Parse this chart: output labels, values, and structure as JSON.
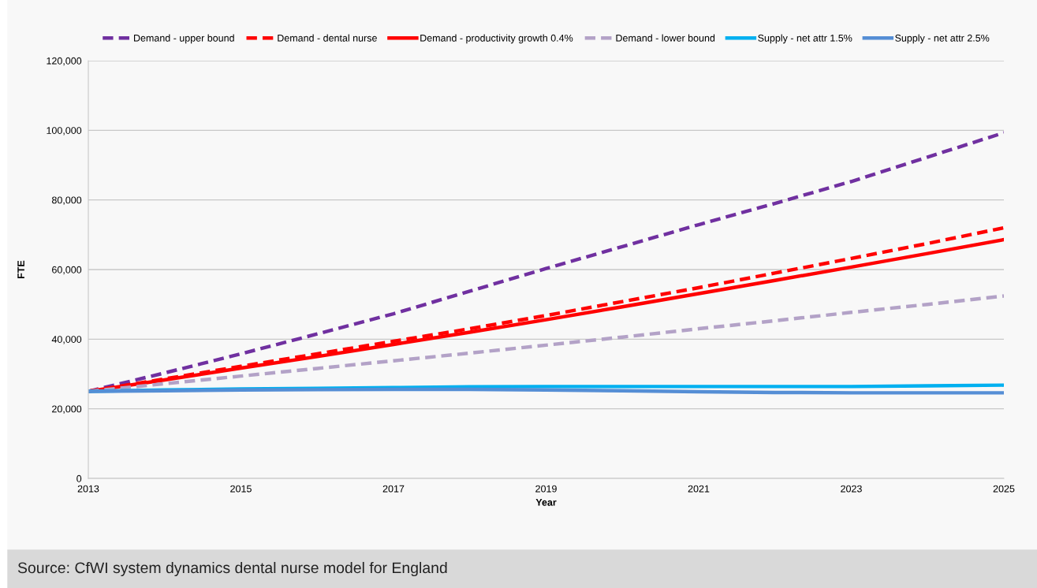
{
  "chart_data": {
    "type": "line",
    "xlabel": "Year",
    "ylabel": "FTE",
    "x": [
      2013,
      2014,
      2015,
      2016,
      2017,
      2018,
      2019,
      2020,
      2021,
      2022,
      2023,
      2024,
      2025
    ],
    "series": [
      {
        "name": "Demand - upper bound",
        "color": "#7030a0",
        "line_style": "dashed",
        "values": [
          25000,
          30300,
          35800,
          41500,
          47300,
          53800,
          60300,
          66600,
          72900,
          79000,
          85300,
          92300,
          99300
        ]
      },
      {
        "name": "Demand - dental nurse",
        "color": "#ff0000",
        "line_style": "dashed",
        "values": [
          25000,
          28600,
          32200,
          35800,
          39400,
          43000,
          46800,
          50800,
          54800,
          59000,
          63200,
          67500,
          72000
        ]
      },
      {
        "name": "Demand - productivity growth 0.4%",
        "color": "#ff0000",
        "line_style": "solid",
        "values": [
          25000,
          28300,
          31700,
          35000,
          38500,
          42000,
          45600,
          49300,
          53100,
          56900,
          60700,
          64600,
          68600
        ]
      },
      {
        "name": "Demand - lower bound",
        "color": "#b3a2c7",
        "line_style": "dashed",
        "values": [
          25000,
          27200,
          29400,
          31600,
          33800,
          36000,
          38300,
          40600,
          43000,
          45300,
          47700,
          50000,
          52400
        ]
      },
      {
        "name": "Supply - net attr 1.5%",
        "color": "#00b0f0",
        "line_style": "solid",
        "values": [
          25000,
          25400,
          25700,
          25900,
          26100,
          26300,
          26400,
          26400,
          26400,
          26400,
          26400,
          26600,
          26800
        ]
      },
      {
        "name": "Supply - net attr 2.5%",
        "color": "#558ed5",
        "line_style": "solid",
        "values": [
          25000,
          25200,
          25400,
          25500,
          25600,
          25600,
          25400,
          25200,
          24900,
          24700,
          24600,
          24600,
          24600
        ]
      }
    ],
    "xlim": [
      2013,
      2025
    ],
    "xticks": [
      2013,
      2015,
      2017,
      2019,
      2021,
      2023,
      2025
    ],
    "ylim": [
      0,
      120000
    ],
    "yticks": [
      {
        "value": 0,
        "label": "0"
      },
      {
        "value": 20000,
        "label": "20,000"
      },
      {
        "value": 40000,
        "label": "40,000"
      },
      {
        "value": 60000,
        "label": "60,000"
      },
      {
        "value": 80000,
        "label": "80,000"
      },
      {
        "value": 100000,
        "label": "100,000"
      },
      {
        "value": 120000,
        "label": "120,000"
      }
    ],
    "grid": "y",
    "legend": "top",
    "marker": "none",
    "annotations": [
      "Source: CfWI system dynamics dental nurse model for England"
    ]
  }
}
